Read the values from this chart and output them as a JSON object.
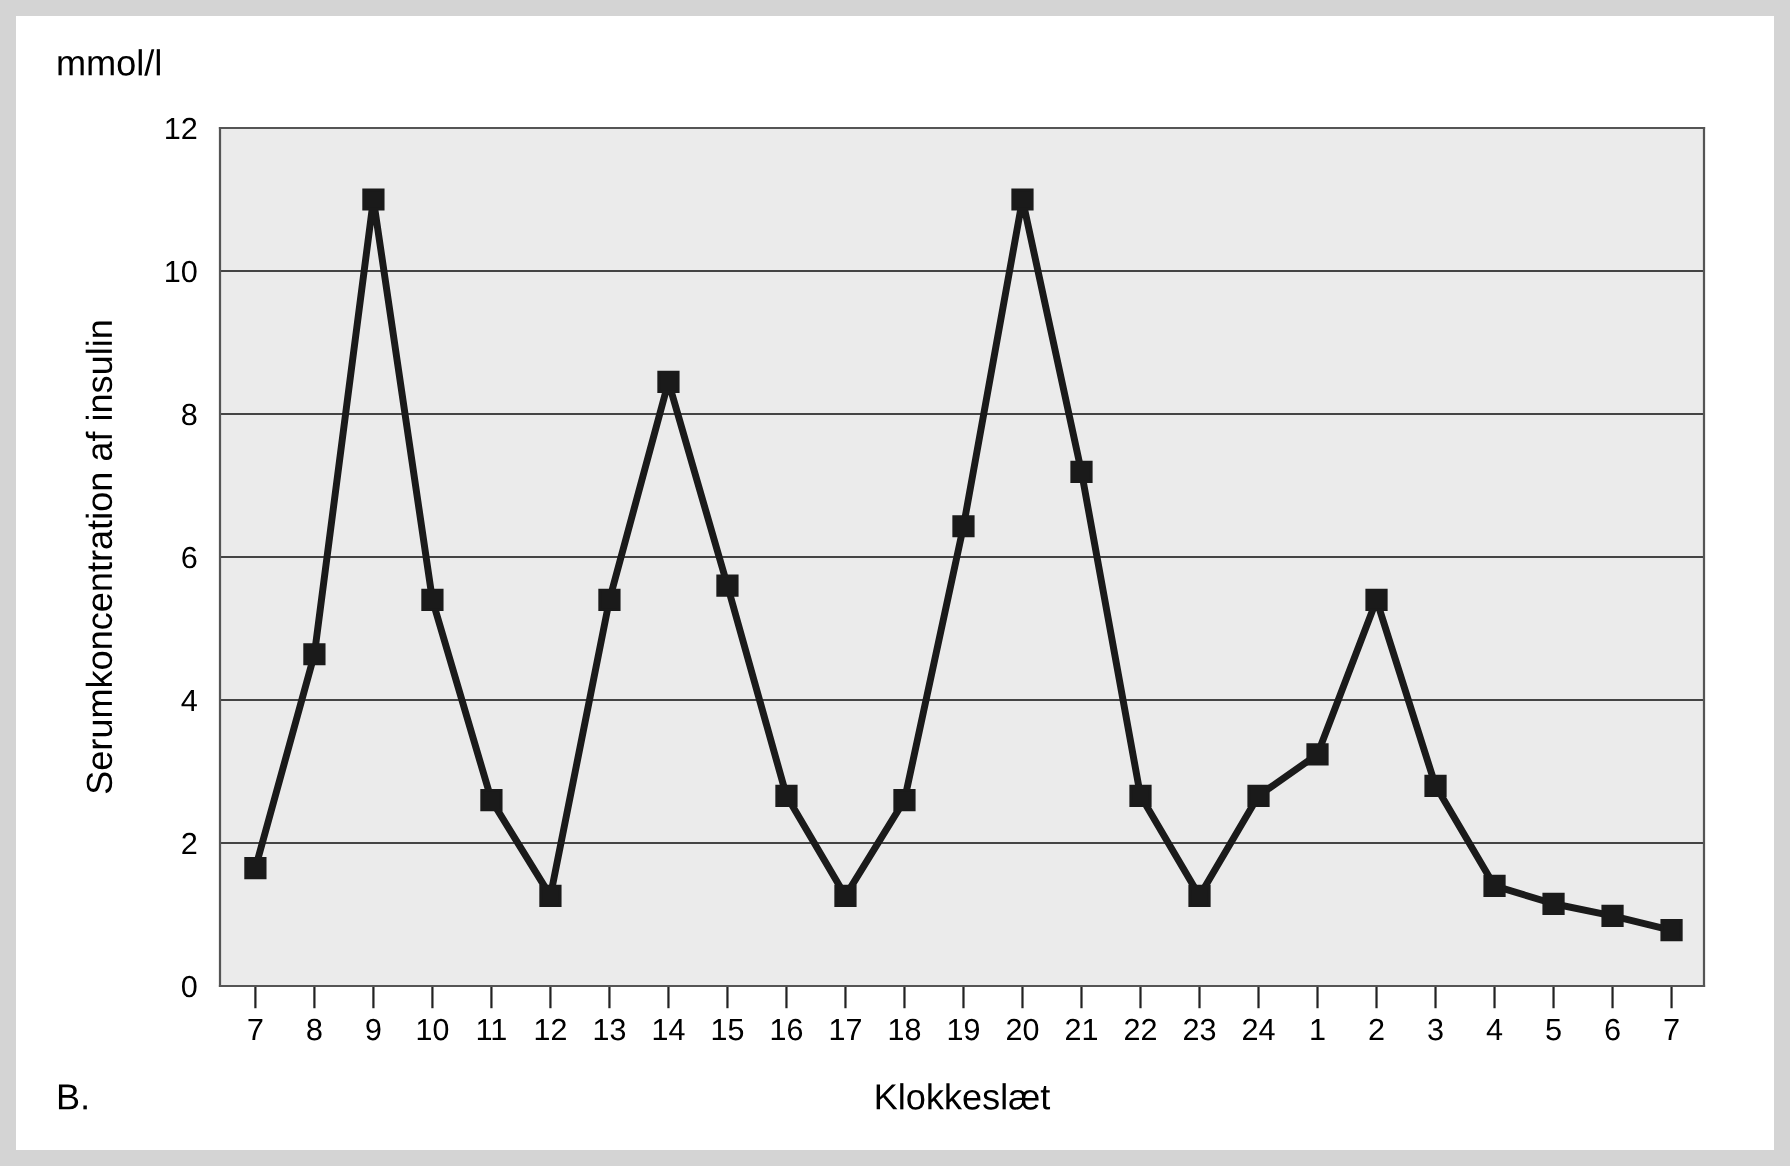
{
  "chart_data": {
    "type": "line",
    "xlabel": "Klokkeslæt",
    "ylabel": "Serumkoncentration af insulin",
    "categories": [
      "7",
      "8",
      "9",
      "10",
      "11",
      "12",
      "13",
      "14",
      "15",
      "16",
      "17",
      "18",
      "19",
      "20",
      "21",
      "22",
      "23",
      "24",
      "1",
      "2",
      "3",
      "4",
      "5",
      "6",
      "7"
    ],
    "series": [
      {
        "color": "#1a1a1a",
        "values": [
          1.65,
          4.64,
          11.0,
          5.4,
          2.6,
          1.26,
          5.4,
          8.45,
          5.6,
          2.66,
          1.26,
          2.6,
          6.43,
          11.0,
          7.19,
          2.66,
          1.26,
          2.66,
          3.24,
          5.4,
          2.8,
          1.4,
          1.15,
          0.98,
          0.78
        ]
      }
    ],
    "ylim": [
      0,
      12
    ],
    "yticks": [
      0,
      2,
      4,
      6,
      8,
      10,
      12
    ],
    "grid": "y",
    "marker": "square",
    "line_style": "solid",
    "legend": false,
    "annotations": [
      "mmol/l",
      "B."
    ]
  }
}
